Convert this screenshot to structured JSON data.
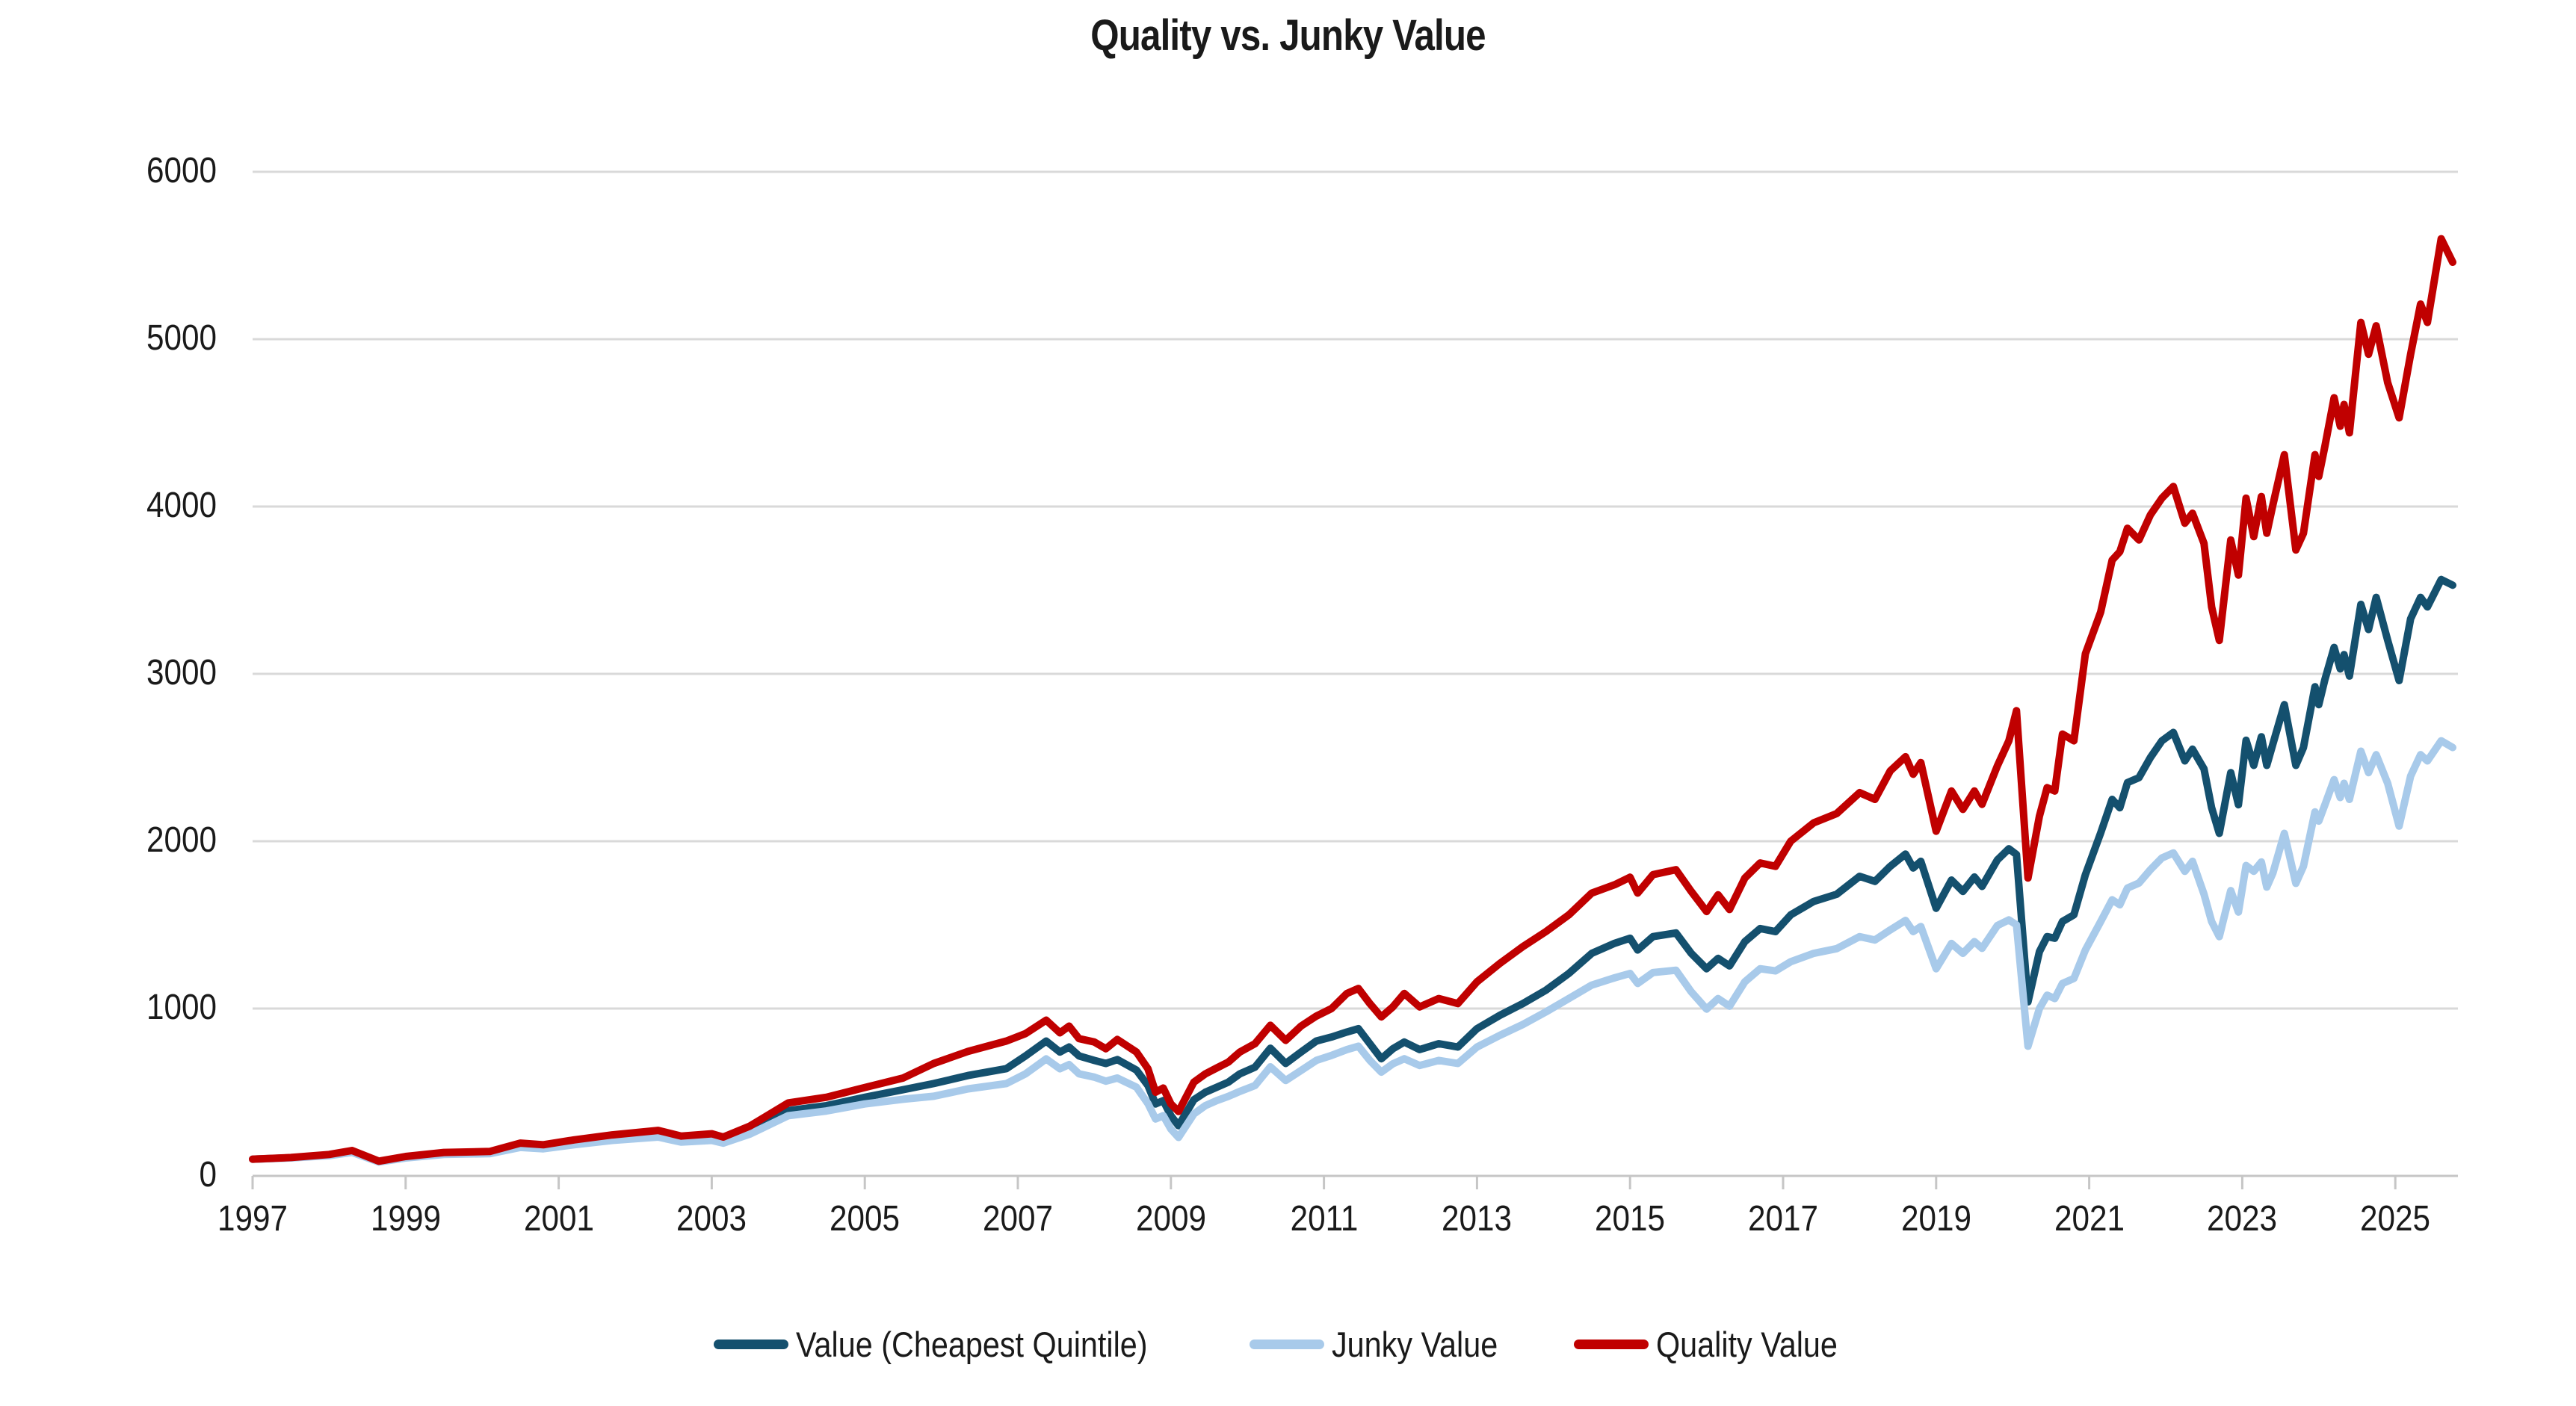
{
  "title": "Quality vs. Junky Value",
  "colors": {
    "value_cheapest_quintile": "#14506E",
    "junky_value": "#A8CAEA",
    "quality_value": "#C00000",
    "gridline": "#D9D9D9",
    "axis": "#C6C6C6",
    "text": "#1a1a1a"
  },
  "y_axis": {
    "ticks": [
      0,
      1000,
      2000,
      3000,
      4000,
      5000,
      6000
    ]
  },
  "x_axis": {
    "ticks": [
      1997,
      1999,
      2001,
      2003,
      2005,
      2007,
      2009,
      2011,
      2013,
      2015,
      2017,
      2019,
      2021,
      2023,
      2025
    ]
  },
  "legend": {
    "position": "bottom"
  },
  "chart_data": {
    "type": "line",
    "title": "Quality vs. Junky Value",
    "xlabel": "",
    "ylabel": "",
    "xlim": [
      1997,
      2025.8
    ],
    "ylim": [
      0,
      6000
    ],
    "grid": "horizontal",
    "legend_position": "bottom",
    "x": [
      1997.0,
      1997.5,
      1998.0,
      1998.3,
      1998.65,
      1999.0,
      1999.5,
      2000.1,
      2000.5,
      2000.8,
      2001.2,
      2001.7,
      2002.3,
      2002.6,
      2003.0,
      2003.15,
      2003.5,
      2004.0,
      2004.5,
      2005.0,
      2005.5,
      2005.9,
      2006.35,
      2006.85,
      2007.1,
      2007.37,
      2007.55,
      2007.67,
      2007.8,
      2008.0,
      2008.15,
      2008.3,
      2008.55,
      2008.7,
      2008.8,
      2008.9,
      2009.0,
      2009.1,
      2009.3,
      2009.45,
      2009.6,
      2009.75,
      2009.9,
      2010.1,
      2010.3,
      2010.5,
      2010.7,
      2010.9,
      2011.1,
      2011.3,
      2011.45,
      2011.6,
      2011.75,
      2011.9,
      2012.05,
      2012.25,
      2012.5,
      2012.75,
      2013.0,
      2013.3,
      2013.6,
      2013.9,
      2014.2,
      2014.5,
      2014.8,
      2015.0,
      2015.1,
      2015.3,
      2015.6,
      2015.8,
      2016.0,
      2016.15,
      2016.3,
      2016.5,
      2016.7,
      2016.9,
      2017.1,
      2017.4,
      2017.7,
      2018.0,
      2018.2,
      2018.4,
      2018.6,
      2018.7,
      2018.8,
      2019.0,
      2019.2,
      2019.35,
      2019.5,
      2019.6,
      2019.8,
      2019.95,
      2020.05,
      2020.2,
      2020.35,
      2020.45,
      2020.55,
      2020.65,
      2020.8,
      2020.95,
      2021.15,
      2021.3,
      2021.4,
      2021.5,
      2021.65,
      2021.8,
      2021.95,
      2022.1,
      2022.25,
      2022.35,
      2022.5,
      2022.6,
      2022.7,
      2022.85,
      2022.95,
      2023.05,
      2023.15,
      2023.25,
      2023.32,
      2023.4,
      2023.55,
      2023.7,
      2023.8,
      2023.95,
      2024.0,
      2024.08,
      2024.2,
      2024.28,
      2024.33,
      2024.4,
      2024.55,
      2024.65,
      2024.75,
      2024.9,
      2025.05,
      2025.2,
      2025.33,
      2025.42,
      2025.6,
      2025.75
    ],
    "series": [
      {
        "name": "Value (Cheapest Quintile)",
        "color": "#14506E",
        "values": [
          100,
          108,
          124,
          145,
          85,
          110,
          132,
          138,
          180,
          172,
          198,
          225,
          248,
          216,
          228,
          210,
          268,
          390,
          420,
          470,
          515,
          552,
          600,
          641,
          717,
          806,
          740,
          770,
          717,
          690,
          672,
          695,
          632,
          540,
          430,
          450,
          360,
          300,
          455,
          500,
          530,
          560,
          610,
          650,
          763,
          672,
          740,
          806,
          830,
          860,
          880,
          790,
          700,
          760,
          800,
          755,
          790,
          770,
          880,
          960,
          1030,
          1110,
          1210,
          1330,
          1390,
          1420,
          1350,
          1430,
          1452,
          1330,
          1238,
          1300,
          1255,
          1400,
          1478,
          1460,
          1560,
          1640,
          1683,
          1790,
          1760,
          1850,
          1923,
          1840,
          1880,
          1599,
          1768,
          1700,
          1786,
          1730,
          1888,
          1955,
          1920,
          1040,
          1340,
          1430,
          1420,
          1520,
          1560,
          1800,
          2050,
          2250,
          2200,
          2350,
          2380,
          2500,
          2600,
          2650,
          2480,
          2550,
          2432,
          2200,
          2047,
          2410,
          2218,
          2603,
          2453,
          2624,
          2453,
          2581,
          2816,
          2453,
          2560,
          2923,
          2816,
          2966,
          3158,
          3030,
          3115,
          2987,
          3415,
          3265,
          3457,
          3201,
          2960,
          3329,
          3457,
          3400,
          3564,
          3530
        ]
      },
      {
        "name": "Junky Value",
        "color": "#A8CAEA",
        "values": [
          100,
          107,
          121,
          140,
          83,
          107,
          128,
          133,
          170,
          162,
          186,
          212,
          232,
          202,
          212,
          196,
          250,
          360,
          388,
          430,
          458,
          476,
          520,
          552,
          610,
          699,
          640,
          665,
          610,
          590,
          566,
          585,
          530,
          432,
          340,
          360,
          280,
          230,
          370,
          420,
          450,
          475,
          505,
          540,
          652,
          570,
          630,
          690,
          720,
          755,
          775,
          690,
          620,
          670,
          700,
          660,
          690,
          672,
          770,
          840,
          905,
          980,
          1060,
          1140,
          1184,
          1210,
          1150,
          1215,
          1229,
          1100,
          997,
          1060,
          1014,
          1160,
          1238,
          1225,
          1280,
          1330,
          1358,
          1430,
          1410,
          1470,
          1527,
          1460,
          1490,
          1238,
          1389,
          1330,
          1400,
          1360,
          1496,
          1530,
          1500,
          775,
          1000,
          1080,
          1060,
          1150,
          1180,
          1350,
          1520,
          1650,
          1620,
          1720,
          1750,
          1830,
          1900,
          1930,
          1820,
          1880,
          1684,
          1520,
          1430,
          1705,
          1577,
          1855,
          1820,
          1876,
          1726,
          1810,
          2047,
          1748,
          1850,
          2175,
          2120,
          2218,
          2368,
          2261,
          2346,
          2250,
          2538,
          2410,
          2517,
          2346,
          2090,
          2389,
          2517,
          2480,
          2600,
          2560
        ]
      },
      {
        "name": "Quality Value",
        "color": "#C00000",
        "values": [
          100,
          110,
          128,
          152,
          88,
          116,
          140,
          146,
          196,
          186,
          215,
          245,
          272,
          238,
          252,
          232,
          298,
          436,
          470,
          528,
          585,
          672,
          744,
          806,
          850,
          931,
          855,
          895,
          820,
          800,
          760,
          815,
          740,
          640,
          500,
          525,
          430,
          385,
          560,
          610,
          645,
          680,
          740,
          790,
          900,
          810,
          895,
          955,
          1000,
          1090,
          1120,
          1030,
          950,
          1010,
          1090,
          1010,
          1060,
          1030,
          1160,
          1270,
          1370,
          1460,
          1560,
          1690,
          1740,
          1785,
          1690,
          1800,
          1830,
          1700,
          1580,
          1680,
          1592,
          1780,
          1870,
          1850,
          2000,
          2110,
          2165,
          2290,
          2250,
          2420,
          2505,
          2400,
          2470,
          2060,
          2300,
          2190,
          2300,
          2220,
          2450,
          2600,
          2780,
          1780,
          2150,
          2320,
          2300,
          2640,
          2600,
          3120,
          3370,
          3680,
          3730,
          3870,
          3800,
          3950,
          4050,
          4120,
          3900,
          3960,
          3780,
          3400,
          3200,
          3800,
          3590,
          4050,
          3820,
          4060,
          3840,
          4010,
          4310,
          3740,
          3840,
          4310,
          4180,
          4360,
          4650,
          4480,
          4610,
          4440,
          5100,
          4910,
          5080,
          4740,
          4530,
          4910,
          5210,
          5100,
          5600,
          5460
        ]
      }
    ]
  }
}
